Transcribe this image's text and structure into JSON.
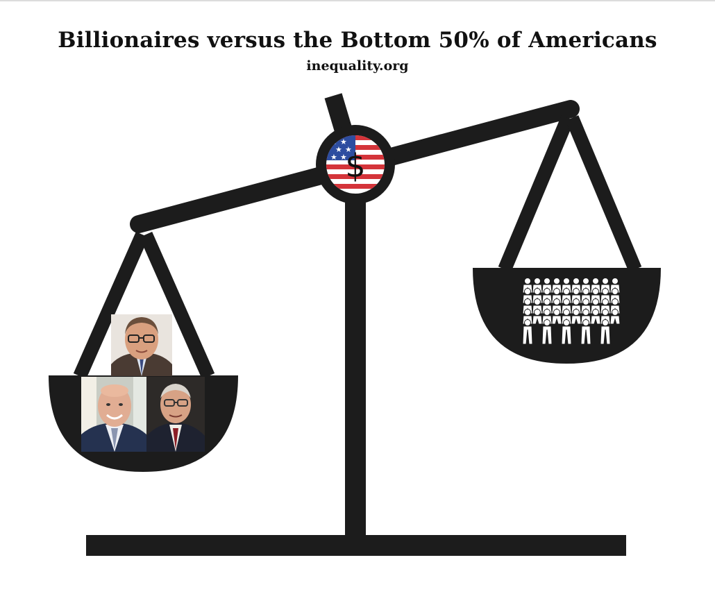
{
  "title": "Billionaires versus the Bottom 50% of Americans",
  "subtitle": "inequality.org",
  "fulcrum_symbol": "$",
  "colors": {
    "scale": "#1c1c1c",
    "flag_red": "#d4343a",
    "flag_blue": "#2d4da0",
    "background": "#ffffff"
  },
  "left_pan": {
    "people": [
      "billionaire-portrait-glasses",
      "billionaire-portrait-bald",
      "billionaire-portrait-elder"
    ]
  },
  "right_pan": {
    "icon": "crowd-of-people-icon"
  }
}
